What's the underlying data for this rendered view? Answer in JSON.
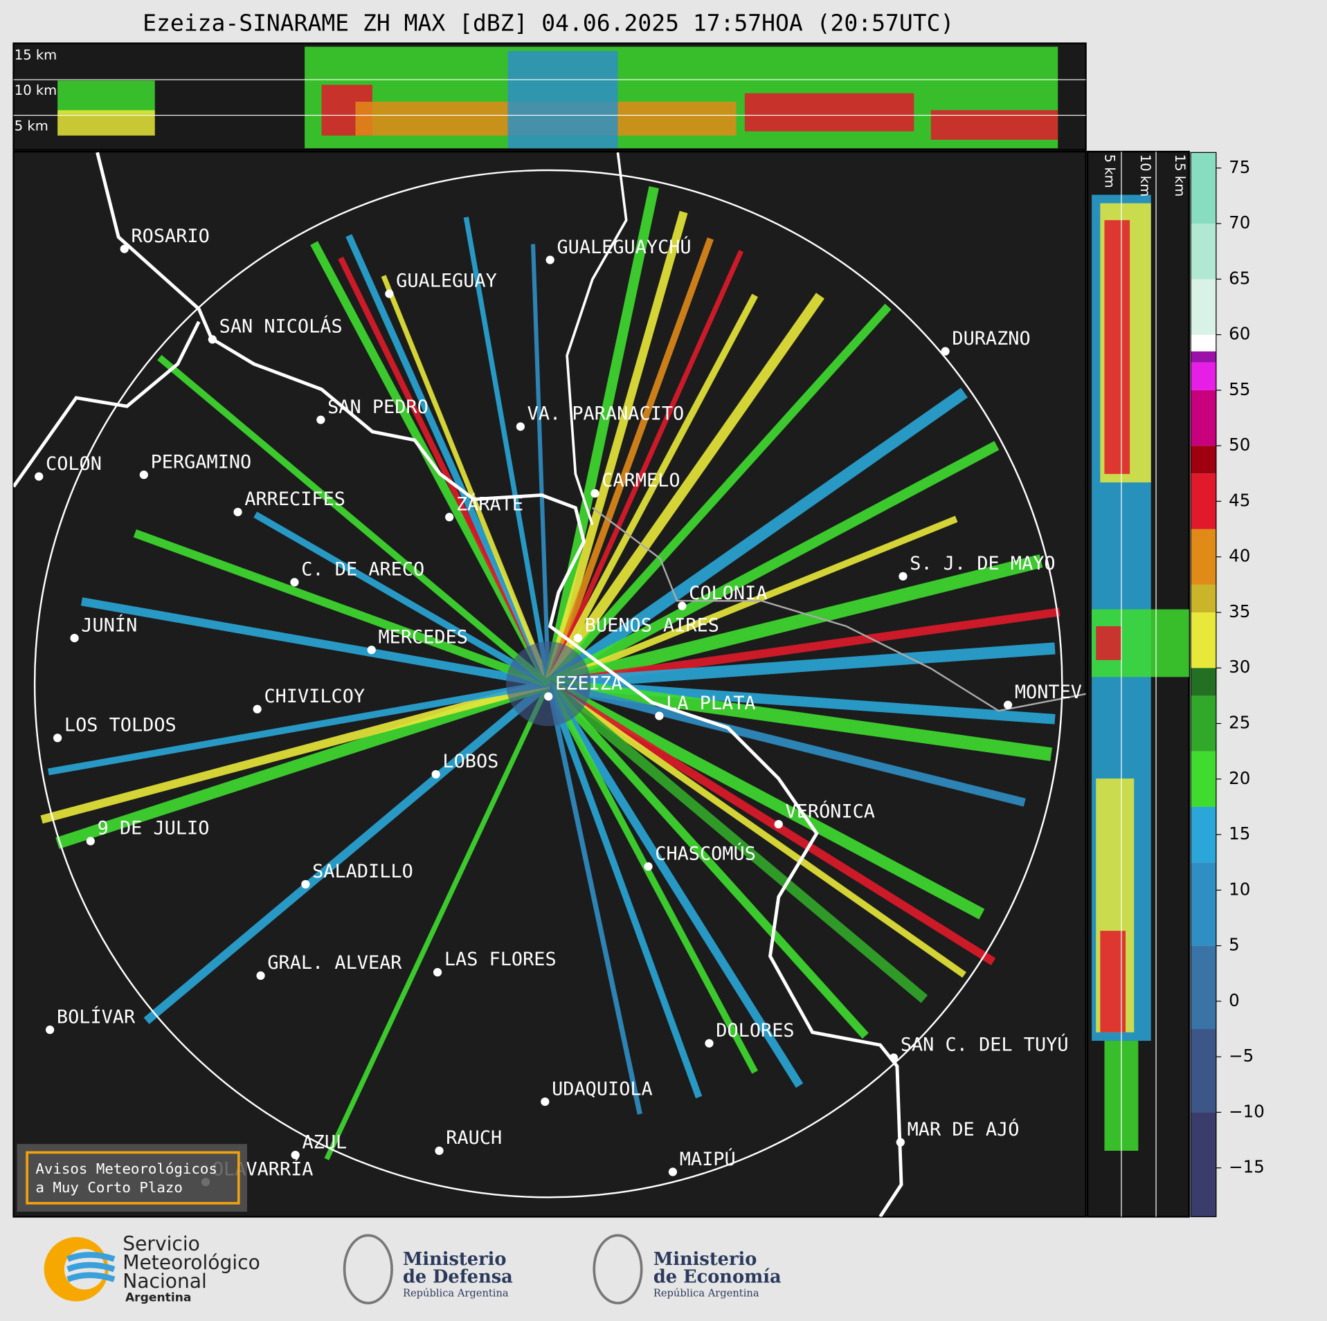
{
  "title": "Ezeiza-SINARAME ZH MAX [dBZ] 04.06.2025 17:57HOA (20:57UTC)",
  "height_labels": {
    "top": [
      "15 km",
      "10 km",
      "5 km"
    ],
    "side": [
      "5 km",
      "10 km",
      "15 km"
    ]
  },
  "cities": [
    "ROSARIO",
    "GUALEGUAYCHÚ",
    "GUALEGUAY",
    "SAN NICOLÁS",
    "DURAZNO",
    "SAN PEDRO",
    "VA. PARANACITO",
    "COLON",
    "PERGAMINO",
    "CARMELO",
    "ARRECIFES",
    "ZÁRATE",
    "C. DE ARECO",
    "S. J. DE MAYO",
    "COLONIA",
    "JUNÍN",
    "BUENOS AIRES",
    "MERCEDES",
    "EZEIZA",
    "MONTEV",
    "CHIVILCOY",
    "LA PLATA",
    "LOS TOLDOS",
    "LOBOS",
    "VERÓNICA",
    "9 DE JULIO",
    "CHASCOMÚS",
    "SALADILLO",
    "GRAL. ALVEAR",
    "LAS FLORES",
    "BOLÍVAR",
    "DOLORES",
    "SAN C. DEL TUYÚ",
    "UDAQUIOLA",
    "RAUCH",
    "MAR DE AJÓ",
    "AZUL",
    "OLAVARRÍA",
    "MAIPÚ"
  ],
  "colorbar": {
    "lim": [
      -19.4,
      76.4
    ],
    "ticks": [
      75,
      70,
      65,
      60,
      55,
      50,
      45,
      40,
      35,
      30,
      25,
      20,
      15,
      10,
      5,
      0,
      {
        "value": -5,
        "label": "−5"
      },
      {
        "value": -10,
        "label": "−10"
      },
      {
        "value": -15,
        "label": "−15"
      }
    ],
    "bands": [
      {
        "from": -19.4,
        "to": -10,
        "color": "#3a3d6b"
      },
      {
        "from": -10,
        "to": -2.5,
        "color": "#3d5688"
      },
      {
        "from": -2.5,
        "to": 5,
        "color": "#3a73a6"
      },
      {
        "from": 5,
        "to": 12.5,
        "color": "#2f8fc4"
      },
      {
        "from": 12.5,
        "to": 17.5,
        "color": "#2aa7d8"
      },
      {
        "from": 17.5,
        "to": 22.5,
        "color": "#3fdc2f"
      },
      {
        "from": 22.5,
        "to": 27.5,
        "color": "#32a82a"
      },
      {
        "from": 27.5,
        "to": 30,
        "color": "#237022"
      },
      {
        "from": 30,
        "to": 35,
        "color": "#e8e83a"
      },
      {
        "from": 35,
        "to": 37.5,
        "color": "#c9b42a"
      },
      {
        "from": 37.5,
        "to": 42.5,
        "color": "#e08a18"
      },
      {
        "from": 42.5,
        "to": 47.5,
        "color": "#e01a2a"
      },
      {
        "from": 47.5,
        "to": 50,
        "color": "#9e0010"
      },
      {
        "from": 50,
        "to": 55,
        "color": "#c8007e"
      },
      {
        "from": 55,
        "to": 57.5,
        "color": "#e61ee6"
      },
      {
        "from": 57.5,
        "to": 58.5,
        "color": "#9a10a8"
      },
      {
        "from": 58.5,
        "to": 60,
        "color": "#ffffff"
      },
      {
        "from": 60,
        "to": 65,
        "color": "#d8f2e6"
      },
      {
        "from": 65,
        "to": 70,
        "color": "#b0e8d2"
      },
      {
        "from": 70,
        "to": 76.4,
        "color": "#88dcc0"
      }
    ]
  },
  "notice": [
    "Avisos Meteorológicos",
    "a Muy Corto Plazo"
  ],
  "logos": {
    "smn": [
      "Servicio",
      "Meteorológico",
      "Nacional",
      "Argentina"
    ],
    "defensa": [
      "Ministerio",
      "de Defensa",
      "República Argentina"
    ],
    "economia": [
      "Ministerio",
      "de Economía",
      "República Argentina"
    ]
  }
}
